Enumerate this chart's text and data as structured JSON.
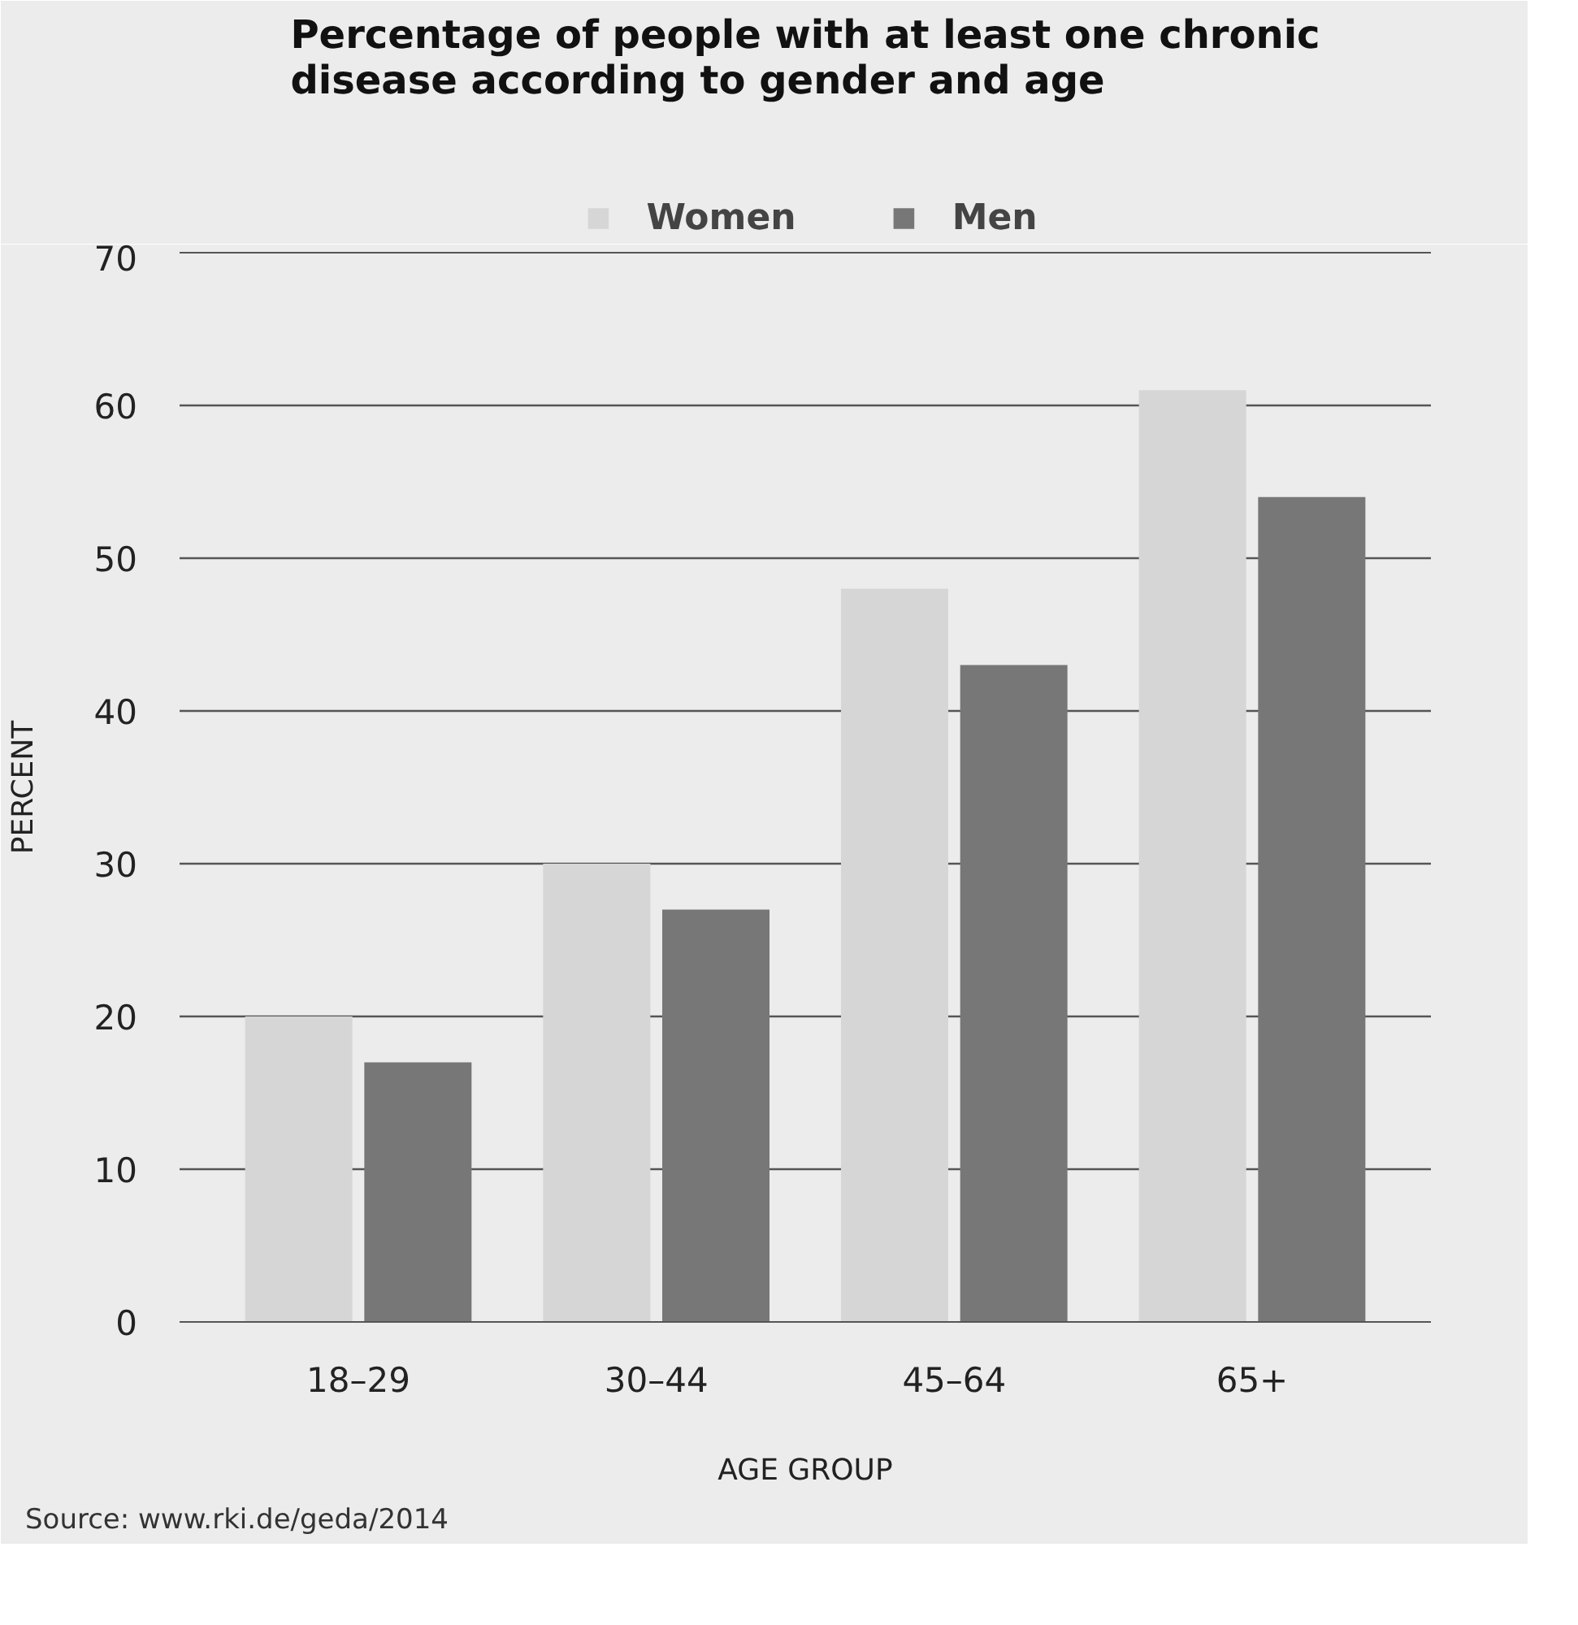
{
  "chart_data": {
    "type": "bar",
    "title": "Percentage of people with at least one chronic disease according to gender and age",
    "categories": [
      "18–29",
      "30–44",
      "45–64",
      "65+"
    ],
    "series": [
      {
        "name": "Women",
        "color": "#d6d6d6",
        "values": [
          20,
          30,
          48,
          61
        ]
      },
      {
        "name": "Men",
        "color": "#777777",
        "values": [
          17,
          27,
          43,
          54
        ]
      }
    ],
    "xlabel": "AGE GROUP",
    "ylabel": "PERCENT",
    "ylim": [
      0,
      70
    ],
    "yticks": [
      0,
      10,
      20,
      30,
      40,
      50,
      60,
      70
    ],
    "grid": "y",
    "legend": "top",
    "annotations": [
      "Source: www.rki.de/geda/2014"
    ]
  }
}
